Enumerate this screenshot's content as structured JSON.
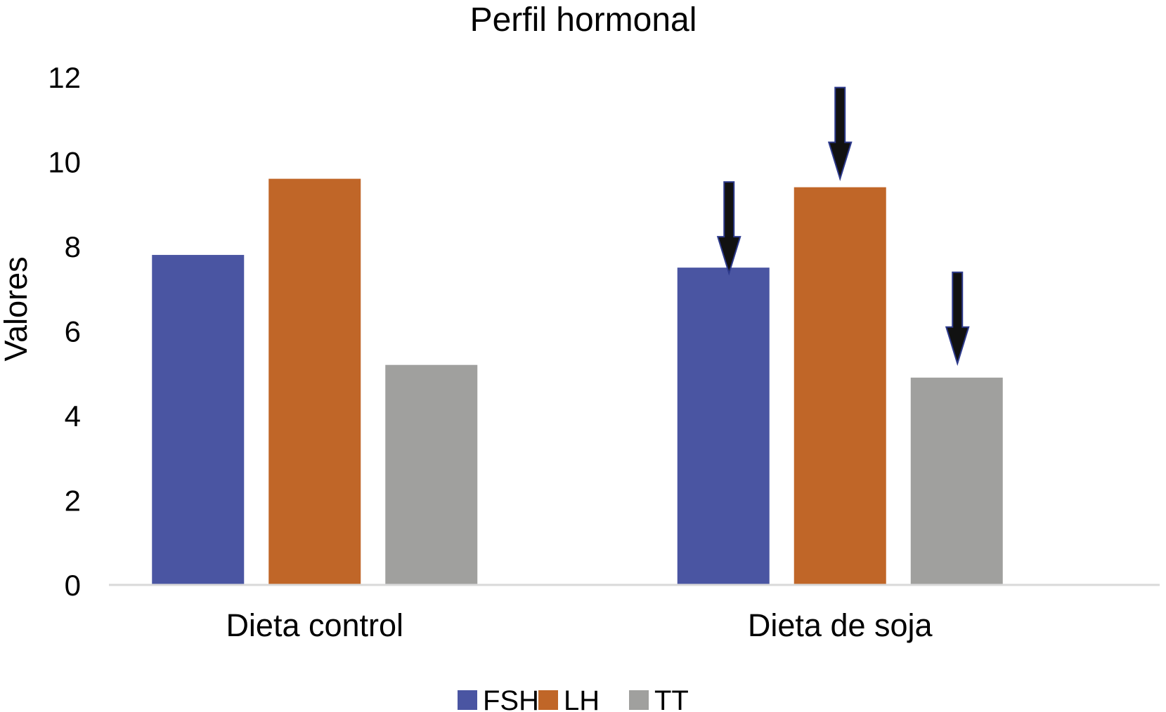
{
  "chart_data": {
    "type": "bar",
    "title": "Perfil hormonal",
    "ylabel": "Valores",
    "xlabel": "",
    "categories": [
      "Dieta control",
      "Dieta de soja"
    ],
    "series": [
      {
        "name": "FSH",
        "color": "#4a55a2",
        "values": [
          7.8,
          7.5
        ]
      },
      {
        "name": "LH",
        "color": "#c06628",
        "values": [
          9.6,
          9.4
        ]
      },
      {
        "name": "TT",
        "color": "#a0a09e",
        "values": [
          5.2,
          4.9
        ]
      }
    ],
    "ylim": [
      0,
      12
    ],
    "yticks": [
      "0",
      "2",
      "4",
      "6",
      "8",
      "10",
      "12"
    ],
    "grid": false,
    "legend_position": "bottom",
    "annotations": {
      "arrows": [
        {
          "category": "Dieta de soja",
          "series": "FSH",
          "direction": "down"
        },
        {
          "category": "Dieta de soja",
          "series": "LH",
          "direction": "down"
        },
        {
          "category": "Dieta de soja",
          "series": "TT",
          "direction": "down"
        }
      ],
      "arrow_color": "#111111"
    }
  }
}
